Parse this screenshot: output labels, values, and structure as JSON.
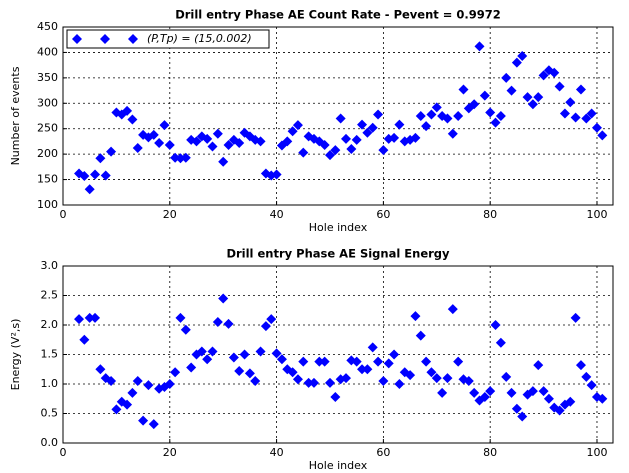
{
  "chart_data": [
    {
      "type": "scatter",
      "title": "Drill entry Phase AE Count Rate - Pevent = 0.9972",
      "xlabel": "Hole index",
      "ylabel": "Number of events",
      "x": [
        3,
        4,
        5,
        6,
        7,
        8,
        9,
        10,
        11,
        12,
        13,
        14,
        15,
        16,
        17,
        18,
        19,
        20,
        21,
        22,
        23,
        24,
        25,
        26,
        27,
        28,
        29,
        30,
        31,
        32,
        33,
        34,
        35,
        36,
        37,
        38,
        39,
        40,
        41,
        42,
        43,
        44,
        45,
        46,
        47,
        48,
        49,
        50,
        51,
        52,
        53,
        54,
        55,
        56,
        57,
        58,
        59,
        60,
        61,
        62,
        63,
        64,
        65,
        66,
        67,
        68,
        69,
        70,
        71,
        72,
        73,
        74,
        75,
        76,
        77,
        78,
        79,
        80,
        81,
        82,
        83,
        84,
        85,
        86,
        87,
        88,
        89,
        90,
        91,
        92,
        93,
        94,
        95,
        96,
        97,
        98,
        99,
        100,
        101
      ],
      "series": [
        {
          "name": "(P,Tp) = (15,0.002)",
          "color": "#0000ff",
          "values": [
            162,
            157,
            131,
            160,
            192,
            158,
            205,
            282,
            278,
            285,
            268,
            212,
            238,
            233,
            238,
            222,
            257,
            218,
            193,
            192,
            193,
            228,
            225,
            235,
            230,
            215,
            240,
            185,
            218,
            228,
            222,
            242,
            235,
            228,
            225,
            162,
            158,
            160,
            217,
            225,
            245,
            257,
            203,
            235,
            230,
            225,
            218,
            198,
            208,
            270,
            230,
            210,
            228,
            258,
            242,
            252,
            278,
            208,
            230,
            232,
            258,
            225,
            228,
            232,
            275,
            255,
            278,
            292,
            275,
            270,
            240,
            275,
            327,
            290,
            298,
            412,
            315,
            282,
            262,
            275,
            350,
            325,
            380,
            393,
            312,
            298,
            312,
            355,
            365,
            360,
            333,
            280,
            302,
            272,
            327,
            270,
            280,
            252,
            237
          ]
        }
      ],
      "xlim": [
        0,
        103
      ],
      "xticks": [
        0,
        20,
        40,
        60,
        80,
        100
      ],
      "ylim": [
        100,
        450
      ],
      "yticks": [
        100,
        150,
        200,
        250,
        300,
        350,
        400,
        450
      ],
      "grid": true,
      "legend": "upper left"
    },
    {
      "type": "scatter",
      "title": "Drill entry Phase AE Signal Energy",
      "xlabel": "Hole index",
      "ylabel": "Energy (V²,s)",
      "x": [
        3,
        4,
        5,
        6,
        7,
        8,
        9,
        10,
        11,
        12,
        13,
        14,
        15,
        16,
        17,
        18,
        19,
        20,
        21,
        22,
        23,
        24,
        25,
        26,
        27,
        28,
        29,
        30,
        31,
        32,
        33,
        34,
        35,
        36,
        37,
        38,
        39,
        40,
        41,
        42,
        43,
        44,
        45,
        46,
        47,
        48,
        49,
        50,
        51,
        52,
        53,
        54,
        55,
        56,
        57,
        58,
        59,
        60,
        61,
        62,
        63,
        64,
        65,
        66,
        67,
        68,
        69,
        70,
        71,
        72,
        73,
        74,
        75,
        76,
        77,
        78,
        79,
        80,
        81,
        82,
        83,
        84,
        85,
        86,
        87,
        88,
        89,
        90,
        91,
        92,
        93,
        94,
        95,
        96,
        97,
        98,
        99,
        100,
        101
      ],
      "series": [
        {
          "color": "#0000ff",
          "values": [
            2.1,
            1.75,
            2.12,
            2.12,
            1.25,
            1.1,
            1.05,
            0.57,
            0.7,
            0.65,
            0.85,
            1.05,
            0.38,
            0.98,
            0.32,
            0.92,
            0.95,
            1.0,
            1.2,
            2.12,
            1.92,
            1.28,
            1.5,
            1.55,
            1.42,
            1.55,
            2.05,
            2.45,
            2.02,
            1.45,
            1.22,
            1.5,
            1.18,
            1.05,
            1.55,
            1.98,
            2.1,
            1.52,
            1.42,
            1.25,
            1.2,
            1.08,
            1.38,
            1.02,
            1.02,
            1.38,
            1.38,
            1.02,
            0.78,
            1.08,
            1.1,
            1.4,
            1.38,
            1.25,
            1.25,
            1.62,
            1.38,
            1.05,
            1.35,
            1.5,
            1.0,
            1.2,
            1.15,
            2.15,
            1.82,
            1.38,
            1.2,
            1.1,
            0.85,
            1.1,
            2.27,
            1.38,
            1.08,
            1.05,
            0.85,
            0.72,
            0.78,
            0.88,
            2.0,
            1.7,
            1.12,
            0.85,
            0.58,
            0.45,
            0.82,
            0.88,
            1.32,
            0.88,
            0.75,
            0.6,
            0.55,
            0.65,
            0.7,
            2.12,
            1.32,
            1.12,
            0.98,
            0.78,
            0.75
          ]
        }
      ],
      "xlim": [
        0,
        103
      ],
      "xticks": [
        0,
        20,
        40,
        60,
        80,
        100
      ],
      "ylim": [
        0,
        3
      ],
      "yticks": [
        {
          "value": 0,
          "label": "0.0"
        },
        0.5,
        {
          "value": 1,
          "label": "1.0"
        },
        1.5,
        {
          "value": 2,
          "label": "2.0"
        },
        2.5,
        {
          "value": 3,
          "label": "3.0"
        }
      ],
      "grid": true
    }
  ]
}
